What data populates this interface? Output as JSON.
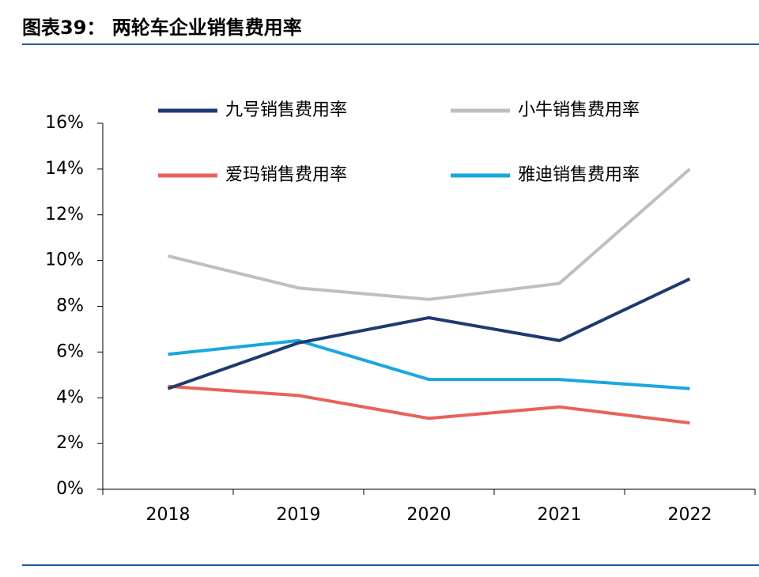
{
  "chart_data": {
    "type": "line",
    "title": "图表39： 两轮车企业销售费用率",
    "categories": [
      "2018",
      "2019",
      "2020",
      "2021",
      "2022"
    ],
    "series": [
      {
        "name": "九号销售费用率",
        "color": "#1f3a6e",
        "values": [
          4.4,
          6.4,
          7.5,
          6.5,
          9.2
        ]
      },
      {
        "name": "小牛销售费用率",
        "color": "#bfbfbf",
        "values": [
          10.2,
          8.8,
          8.3,
          9.0,
          14.0
        ]
      },
      {
        "name": "爱玛销售费用率",
        "color": "#e8625a",
        "values": [
          4.5,
          4.1,
          3.1,
          3.6,
          2.9
        ]
      },
      {
        "name": "雅迪销售费用率",
        "color": "#1aa7e0",
        "values": [
          5.9,
          6.5,
          4.8,
          4.8,
          4.4
        ]
      }
    ],
    "ylim": [
      0,
      16
    ],
    "yticks": [
      {
        "value": 0,
        "label": "0%"
      },
      {
        "value": 2,
        "label": "2%"
      },
      {
        "value": 4,
        "label": "4%"
      },
      {
        "value": 6,
        "label": "6%"
      },
      {
        "value": 8,
        "label": "8%"
      },
      {
        "value": 10,
        "label": "10%"
      },
      {
        "value": 12,
        "label": "12%"
      },
      {
        "value": 14,
        "label": "14%"
      },
      {
        "value": 16,
        "label": "16%"
      }
    ],
    "grid": false
  }
}
